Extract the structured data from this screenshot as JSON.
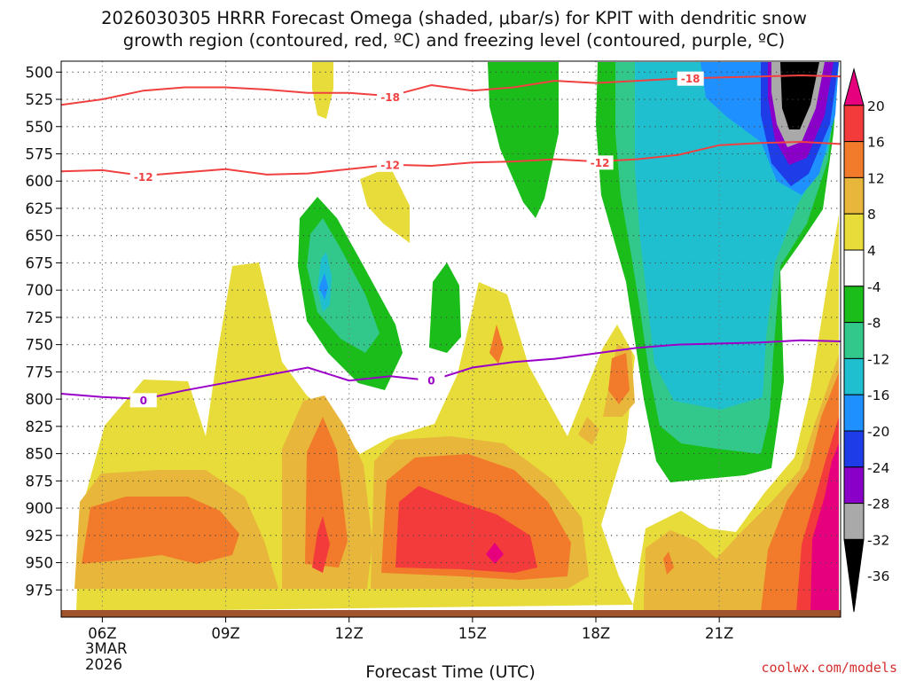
{
  "chart_data": {
    "type": "heatmap",
    "title_line1": "2026030305 HRRR Forecast Omega (shaded, μbar/s) for KPIT with dendritic snow",
    "title_line2": "growth region (contoured, red, ºC) and freezing level (contoured, purple, ºC)",
    "xlabel": "Forecast Time (UTC)",
    "credit": "coolwx.com/models",
    "date_line1": "3MAR",
    "date_line2": "2026",
    "x_range": [
      5,
      23.95
    ],
    "y_range": [
      1000,
      490
    ],
    "y_ticks": [
      500,
      525,
      550,
      575,
      600,
      625,
      650,
      675,
      700,
      725,
      750,
      775,
      800,
      825,
      850,
      875,
      900,
      925,
      950,
      975
    ],
    "x_ticks": [
      {
        "value": 6,
        "label": "06Z"
      },
      {
        "value": 9,
        "label": "09Z"
      },
      {
        "value": 12,
        "label": "12Z"
      },
      {
        "value": 15,
        "label": "15Z"
      },
      {
        "value": 18,
        "label": "18Z"
      },
      {
        "value": 21,
        "label": "21Z"
      }
    ],
    "colorbar": {
      "labels": [
        "20",
        "16",
        "12",
        "8",
        "4",
        "-4",
        "-8",
        "-12",
        "-16",
        "-20",
        "-24",
        "-28",
        "-32",
        "-36"
      ],
      "colors": [
        "#e6007e",
        "#f43b3b",
        "#f17b2a",
        "#e8b63a",
        "#e7dc3a",
        "#ffffff",
        "#1bbd1b",
        "#33c88b",
        "#1fbfd0",
        "#1e90ff",
        "#1e3ce8",
        "#8a00c9",
        "#a9a9a9",
        "#000000"
      ]
    },
    "isotherms": [
      {
        "name": "-18C",
        "label": "-18",
        "color": "#f04040",
        "points": [
          [
            5,
            530
          ],
          [
            6,
            525
          ],
          [
            7,
            517
          ],
          [
            8,
            514
          ],
          [
            9,
            514
          ],
          [
            10,
            516
          ],
          [
            11,
            519
          ],
          [
            12,
            519
          ],
          [
            13,
            522
          ],
          [
            14,
            512
          ],
          [
            15,
            517
          ],
          [
            16,
            514
          ],
          [
            17,
            508
          ],
          [
            18,
            510
          ],
          [
            19,
            508
          ],
          [
            20,
            506
          ],
          [
            21,
            505
          ],
          [
            22,
            504
          ],
          [
            23,
            503
          ],
          [
            23.95,
            504
          ]
        ],
        "labels_at": [
          [
            13.0,
            523
          ],
          [
            20.3,
            506
          ]
        ]
      },
      {
        "name": "-12C",
        "label": "-12",
        "color": "#f04040",
        "points": [
          [
            5,
            591
          ],
          [
            6,
            590
          ],
          [
            7,
            595
          ],
          [
            8,
            592
          ],
          [
            9,
            589
          ],
          [
            10,
            594
          ],
          [
            11,
            593
          ],
          [
            12,
            589
          ],
          [
            13,
            585
          ],
          [
            14,
            586
          ],
          [
            15,
            583
          ],
          [
            16,
            582
          ],
          [
            17,
            580
          ],
          [
            18,
            582
          ],
          [
            19,
            580
          ],
          [
            20,
            576
          ],
          [
            21,
            567
          ],
          [
            22,
            565
          ],
          [
            23,
            564
          ],
          [
            23.95,
            566
          ]
        ],
        "labels_at": [
          [
            7.0,
            596
          ],
          [
            13.0,
            585
          ],
          [
            18.1,
            583
          ]
        ]
      },
      {
        "name": "0C",
        "label": "0",
        "color": "#9b00c8",
        "points": [
          [
            5,
            795
          ],
          [
            6,
            798
          ],
          [
            7,
            800
          ],
          [
            8,
            792
          ],
          [
            9,
            785
          ],
          [
            10,
            778
          ],
          [
            11,
            771
          ],
          [
            12,
            783
          ],
          [
            13,
            779
          ],
          [
            14,
            783
          ],
          [
            15,
            771
          ],
          [
            16,
            766
          ],
          [
            17,
            763
          ],
          [
            18,
            758
          ],
          [
            19,
            753
          ],
          [
            20,
            750
          ],
          [
            21,
            749
          ],
          [
            22,
            748
          ],
          [
            23,
            746
          ],
          [
            23.95,
            747
          ]
        ],
        "labels_at": [
          [
            7.0,
            801
          ],
          [
            14.0,
            783
          ]
        ]
      }
    ]
  }
}
